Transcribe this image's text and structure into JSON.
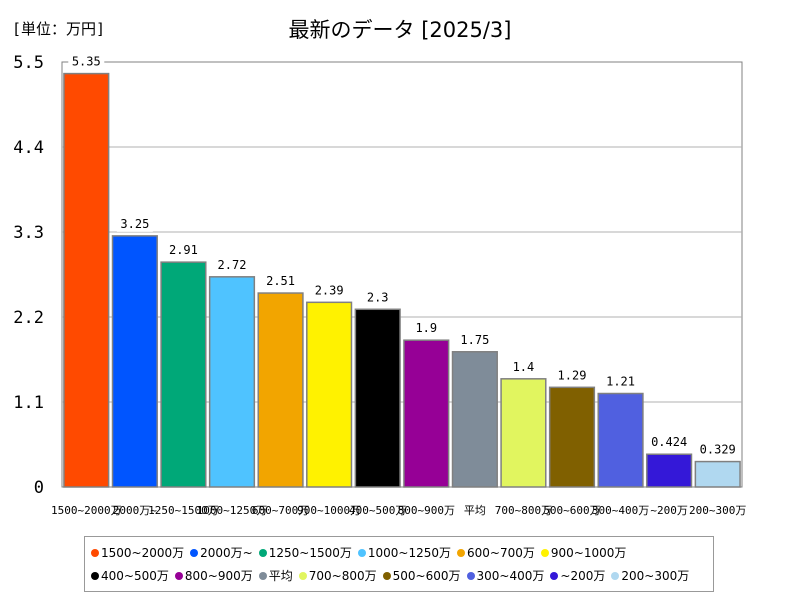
{
  "unit_label": "[単位：万円]",
  "title": "最新のデータ [2025/3]",
  "chart_data": {
    "type": "bar",
    "title": "最新のデータ [2025/3]",
    "ylabel": "",
    "xlabel": "",
    "ylim": [
      0,
      5.5
    ],
    "yticks": [
      "0",
      "1.1",
      "2.2",
      "3.3",
      "4.4",
      "5.5"
    ],
    "grid": true,
    "legend": "bottom",
    "categories": [
      "1500~2000万",
      "2000万~",
      "1250~1500万",
      "1000~1250万",
      "600~700万",
      "900~1000万",
      "400~500万",
      "800~900万",
      "平均",
      "700~800万",
      "500~600万",
      "300~400万",
      "~200万",
      "200~300万"
    ],
    "values": [
      5.35,
      3.25,
      2.91,
      2.72,
      2.51,
      2.39,
      2.3,
      1.9,
      1.75,
      1.4,
      1.29,
      1.21,
      0.424,
      0.329
    ],
    "value_labels": [
      "5.35",
      "3.25",
      "2.91",
      "2.72",
      "2.51",
      "2.39",
      "2.3",
      "1.9",
      "1.75",
      "1.4",
      "1.29",
      "1.21",
      "0.424",
      "0.329"
    ],
    "colors": [
      "#ff4a00",
      "#0055ff",
      "#00a878",
      "#4fc3ff",
      "#f2a500",
      "#fff200",
      "#000000",
      "#960096",
      "#7f8c99",
      "#e1f55f",
      "#806000",
      "#5060e0",
      "#3418d8",
      "#b0d8f0"
    ]
  },
  "legend_items": [
    "1500~2000万",
    "2000万~",
    "1250~1500万",
    "1000~1250万",
    "600~700万",
    "900~1000万",
    "400~500万",
    "800~900万",
    "平均",
    "700~800万",
    "500~600万",
    "300~400万",
    "~200万",
    "200~300万"
  ]
}
